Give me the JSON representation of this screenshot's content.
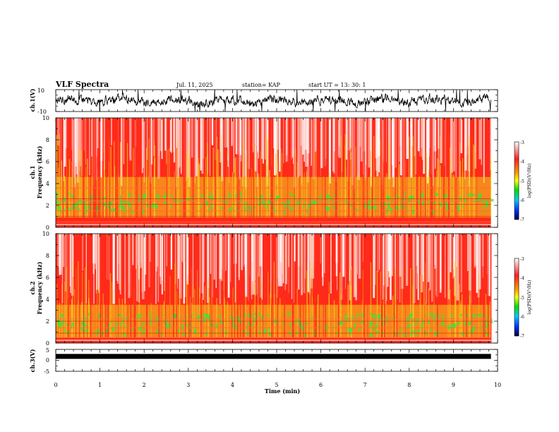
{
  "header": {
    "title": "VLF Spectra",
    "date": "Jul. 11, 2025",
    "station": "station= KAP",
    "start": "start UT = 13: 30: 1"
  },
  "chart_data": [
    {
      "id": "ch1_voltage",
      "type": "line",
      "ylabel": "ch.1(V)",
      "ylim": [
        -10,
        10
      ],
      "yticks": [
        "10",
        "-10"
      ],
      "xlim": [
        0,
        10
      ],
      "description_values": {
        "amplitude_v": 4.5
      }
    },
    {
      "id": "ch1_spectrogram",
      "type": "heatmap",
      "ylabel": "ch.1\nFrequency (kHz)",
      "ylabel_lines": [
        "ch.1",
        "Frequency (kHz)"
      ],
      "ylim": [
        0,
        10
      ],
      "yticks": [
        "0",
        "2",
        "4",
        "6",
        "8",
        "10"
      ],
      "xlim": [
        0,
        10
      ],
      "colorbar": {
        "label": "log(PSD)(V²/Hz)",
        "ticks": [
          "-3",
          "-4",
          "-5",
          "-6",
          "-7"
        ],
        "range": [
          -7,
          -3
        ]
      },
      "bands_khz": {
        "low_green": [
          1.6,
          3.2
        ],
        "mid_yellow": [
          0.9,
          4.6
        ],
        "hum_lines": [
          0.5,
          1.0,
          1.5,
          2.1,
          2.4,
          2.6,
          3.6
        ]
      }
    },
    {
      "id": "ch2_spectrogram",
      "type": "heatmap",
      "ylabel_lines": [
        "ch.2",
        "Frequency (kHz)"
      ],
      "ylim": [
        0,
        10
      ],
      "yticks": [
        "0",
        "2",
        "4",
        "6",
        "8",
        "10"
      ],
      "xlim": [
        0,
        10
      ],
      "colorbar": {
        "label": "log(PSD)(V²/Hz)",
        "ticks": [
          "-3",
          "-4",
          "-5",
          "-6",
          "-7"
        ],
        "range": [
          -7,
          -3
        ]
      },
      "bands_khz": {
        "low_green": [
          0.9,
          2.8
        ],
        "mid_yellow": [
          0.5,
          3.5
        ],
        "hum_lines": [
          0.5,
          0.9,
          1.4,
          2.0,
          2.2
        ]
      }
    },
    {
      "id": "ch3_voltage",
      "type": "line",
      "ylabel": "ch.3(V)",
      "ylim": [
        -5,
        5
      ],
      "yticks": [
        "5",
        "0",
        "-5"
      ],
      "xlim": [
        0,
        10
      ],
      "xlabel": "Time (min)",
      "xticks": [
        "0",
        "1",
        "2",
        "3",
        "4",
        "5",
        "6",
        "7",
        "8",
        "9",
        "10"
      ],
      "description_values": {
        "level_v": 1.8,
        "data_end_min": 9.85
      }
    }
  ],
  "colors": {
    "axis": "#000000",
    "trace": "#000000",
    "spec_red": "#ff2a1a",
    "spec_yellow": "#f2d21e",
    "spec_green": "#3fe33a",
    "spec_white": "#ffffff"
  }
}
